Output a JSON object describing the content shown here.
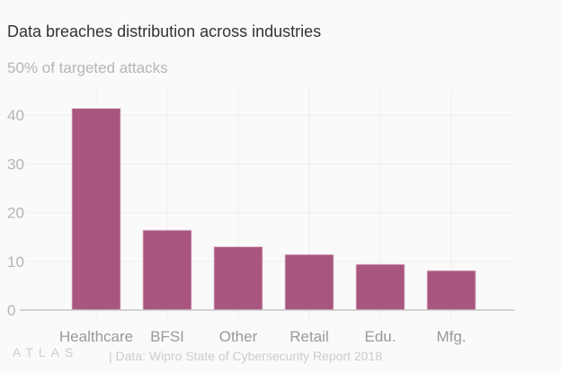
{
  "chart_data": {
    "type": "bar",
    "title": "Data breaches distribution across industries",
    "ylabel": "% of targeted attacks",
    "top_tick_label": "50% of targeted attacks",
    "categories": [
      "Healthcare",
      "BFSI",
      "Other",
      "Retail",
      "Edu.",
      "Mfg."
    ],
    "values": [
      41.4,
      16.4,
      13.0,
      11.4,
      9.4,
      8.1
    ],
    "yticks": [
      0,
      10,
      20,
      30,
      40
    ],
    "ylim": [
      0,
      50
    ],
    "grid": true,
    "bar_color": "#a8567f",
    "source": "| Data: Wipro State of Cybersecurity Report 2018",
    "logo": "ATLAS"
  }
}
